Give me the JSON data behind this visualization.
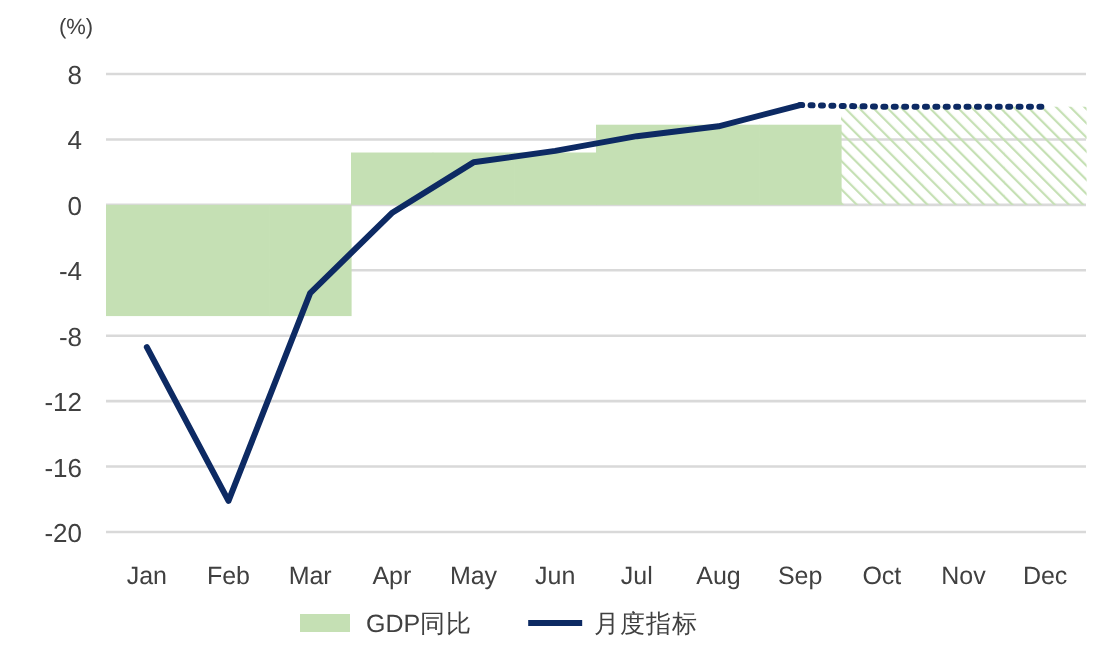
{
  "chart_data": {
    "type": "bar",
    "ylabel": "(%)",
    "categories": [
      "Jan",
      "Feb",
      "Mar",
      "Apr",
      "May",
      "Jun",
      "Jul",
      "Aug",
      "Sep",
      "Oct",
      "Nov",
      "Dec"
    ],
    "series": [
      {
        "name": "GDP同比",
        "color": "#c5e0b4",
        "line_style": "solid",
        "values": [
          -6.8,
          -6.8,
          -6.8,
          3.2,
          3.2,
          3.2,
          4.9,
          4.9,
          4.9,
          null,
          null,
          null
        ]
      },
      {
        "color": "#c5e0b4",
        "line_style": "dashed",
        "values": [
          null,
          null,
          null,
          null,
          null,
          null,
          null,
          null,
          null,
          6.0,
          6.0,
          6.0
        ]
      },
      {
        "name": "月度指标",
        "type": "line",
        "color": "#0d2a63",
        "line_style": "solid",
        "values": [
          -8.7,
          -18.1,
          -5.4,
          -0.5,
          2.6,
          3.3,
          4.2,
          4.8,
          6.1,
          null,
          null,
          null
        ]
      },
      {
        "type": "line",
        "color": "#0d2a63",
        "line_style": "dotted",
        "values": [
          null,
          null,
          null,
          null,
          null,
          null,
          null,
          null,
          6.1,
          6.0,
          6.0,
          6.0
        ]
      }
    ],
    "ylim": [
      -20,
      8
    ],
    "yticks": [
      -20,
      -16,
      -12,
      -8,
      -4,
      0,
      4,
      8
    ],
    "grid": "y",
    "legend": "bottom"
  }
}
